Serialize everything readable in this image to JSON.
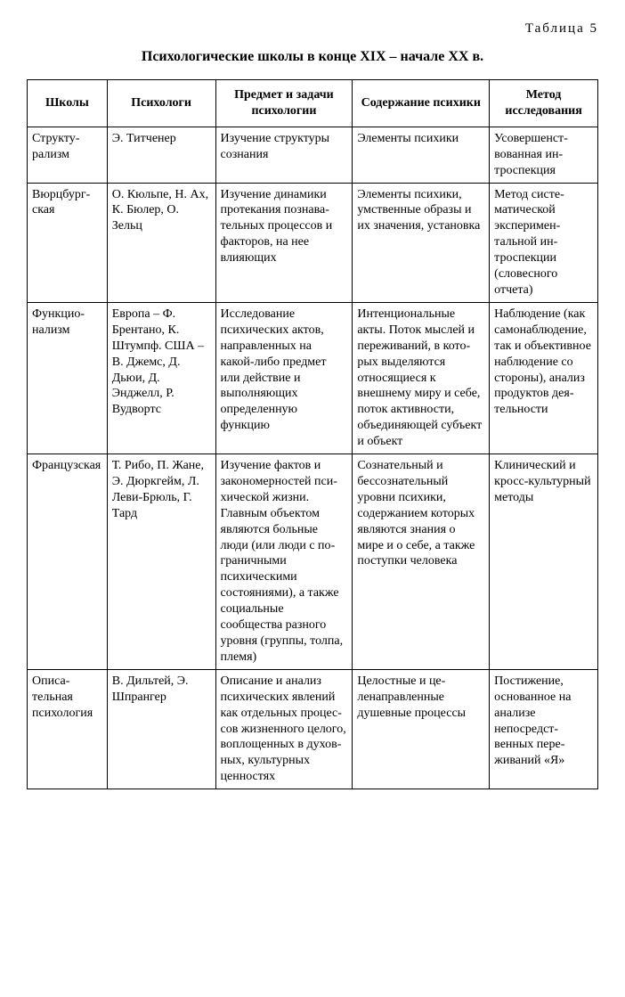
{
  "tableNumber": "Таблица 5",
  "title": "Психологические школы в конце XIX – начале XX в.",
  "columns": [
    "Школы",
    "Психологи",
    "Предмет и задачи психологии",
    "Содержание психики",
    "Метод исследования"
  ],
  "rows": [
    {
      "school": "Структу­рализм",
      "psychologists": "Э. Титченер",
      "subject": "Изучение струк­туры сознания",
      "content": "Элементы психики",
      "method": "Усовершенст­вованная ин­троспекция"
    },
    {
      "school": "Вюрцбург­ская",
      "psychologists": "О. Кюльпе, Н. Ах, К. Бюлер, О. Зельц",
      "subject": "Изучение дина­мики протека­ния познава­тельных про­цессов и факто­ров, на нее влияющих",
      "content": "Элементы пси­хики, умствен­ные образы и их значения, уста­новка",
      "method": "Метод систе­матической эксперимен­тальной ин­троспекции (словесного отчета)"
    },
    {
      "school": "Функцио­нализм",
      "psychologists": "Европа – Ф. Брентано, К. Штумпф. США – В. Джемс, Д. Дьюи, Д. Энджелл, Р. Вудвортс",
      "subject": "Исследование психических ак­тов, направлен­ных на какой-либо предмет или действие и выполняющих определенную функцию",
      "content": "Интенциональ­ные акты. Поток мыслей и пере­живаний, в кото­рых выделяются относящиеся к внешнему миру и себе, поток ак­тивности, объеди­няющей субъект и объект",
      "method": "Наблюдение (как самона­блюдение, так и объек­тивное на­блюдение со стороны), анализ про­дуктов дея­тельности"
    },
    {
      "school": "Француз­ская",
      "psychologists": "Т. Рибо, П. Жане, Э. Дюркгейм, Л. Леви-Брюль, Г. Тард",
      "subject": "Изучение фак­тов и законо­мерностей пси­хической жизни. Главным объек­том являются больные люди (или люди с по­граничными психическими состояниями), а также социаль­ные сообщества разного уровня (группы, толпа, племя)",
      "content": "Сознательный и бессознательный уровни психики, содержанием которых явля­ются знания о мире и о себе, а также поступки человека",
      "method": "Клинический и кросс-культурный методы"
    },
    {
      "school": "Описа­тельная психоло­гия",
      "psychologists": "В. Дильтей, Э. Шпрангер",
      "subject": "Описание и ана­лиз психических явлений как от­дельных процес­сов жизненного целого, вопло­щенных в духов­ных, культурных ценностях",
      "content": "Целостные и це­ленаправленные душевные про­цессы",
      "method": "Постижение, основанное на анализе непосредст­венных пере­живаний «Я»"
    }
  ],
  "style": {
    "bodyWidth": 702,
    "background": "#ffffff",
    "textColor": "#000000",
    "borderColor": "#000000",
    "cellFontSize": 14,
    "titleFontSize": 16,
    "tableNumberFontSize": 15
  }
}
